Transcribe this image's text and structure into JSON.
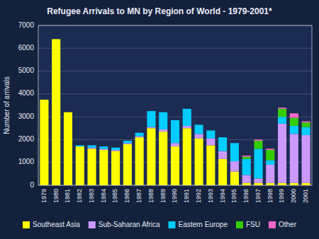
{
  "chart_data": {
    "type": "bar",
    "stacked": true,
    "title": "Refugee Arrivals to MN by Region of World - 1979-2001*",
    "ylabel": "Number of arrivals",
    "categories": [
      "1979",
      "1980",
      "1981",
      "1982",
      "1983",
      "1984",
      "1985",
      "1986",
      "1987",
      "1988",
      "1989",
      "1990",
      "1991",
      "1992",
      "1993",
      "1994",
      "1995",
      "1996",
      "1997",
      "1998",
      "1999",
      "2000",
      "2001"
    ],
    "series": [
      {
        "name": "Southeast Asia",
        "color": "#FFFF00",
        "values": [
          3750,
          6400,
          3200,
          1700,
          1600,
          1550,
          1500,
          1800,
          2100,
          2500,
          2350,
          1700,
          2500,
          2050,
          1750,
          1150,
          600,
          100,
          100,
          100,
          100,
          100,
          100
        ]
      },
      {
        "name": "Sub-Saharan Africa",
        "color": "#CC99FF",
        "values": [
          0,
          0,
          0,
          0,
          50,
          50,
          50,
          50,
          50,
          50,
          100,
          150,
          100,
          200,
          300,
          350,
          450,
          350,
          200,
          800,
          2600,
          2150,
          2100
        ]
      },
      {
        "name": "Eastern Europe",
        "color": "#00CCFF",
        "values": [
          0,
          0,
          0,
          50,
          100,
          100,
          100,
          100,
          150,
          700,
          750,
          1000,
          750,
          400,
          350,
          600,
          800,
          700,
          1300,
          200,
          300,
          350,
          350
        ]
      },
      {
        "name": "FSU",
        "color": "#33CC00",
        "values": [
          0,
          0,
          0,
          0,
          0,
          0,
          0,
          0,
          0,
          0,
          0,
          0,
          0,
          0,
          0,
          0,
          0,
          100,
          350,
          450,
          350,
          350,
          200
        ]
      },
      {
        "name": "Other",
        "color": "#FF66CC",
        "values": [
          0,
          0,
          0,
          0,
          0,
          0,
          0,
          0,
          0,
          0,
          0,
          0,
          0,
          0,
          0,
          0,
          0,
          50,
          50,
          50,
          50,
          200,
          50
        ]
      }
    ],
    "ylim": [
      0,
      7000
    ],
    "yticks": [
      0,
      1000,
      2000,
      3000,
      4000,
      5000,
      6000,
      7000
    ],
    "grid": true,
    "legend": "bottom"
  }
}
